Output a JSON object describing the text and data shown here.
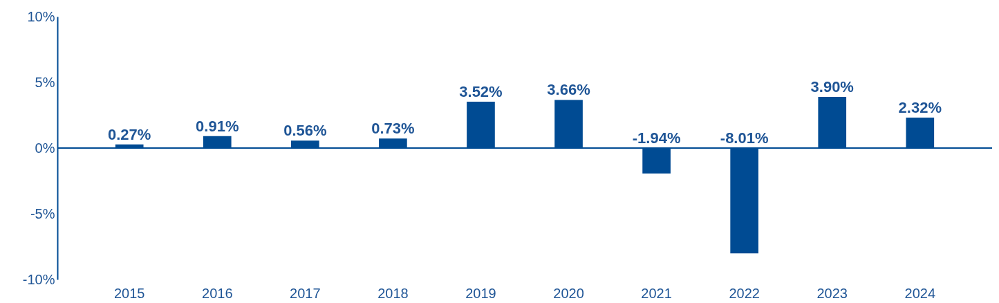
{
  "chart_data": {
    "type": "bar",
    "categories": [
      "2015",
      "2016",
      "2017",
      "2018",
      "2019",
      "2020",
      "2021",
      "2022",
      "2023",
      "2024"
    ],
    "values": [
      0.27,
      0.91,
      0.56,
      0.73,
      3.52,
      3.66,
      -1.94,
      -8.01,
      3.9,
      2.32
    ],
    "value_labels": [
      "0.27%",
      "0.91%",
      "0.56%",
      "0.73%",
      "3.52%",
      "3.66%",
      "-1.94%",
      "-8.01%",
      "3.90%",
      "2.32%"
    ],
    "color": "#004b93",
    "ylim": [
      -10,
      10
    ],
    "yticks": [
      {
        "value": -10,
        "label": "-10%"
      },
      {
        "value": -5,
        "label": "-5%"
      },
      {
        "value": 0,
        "label": "0%"
      },
      {
        "value": 5,
        "label": "5%"
      },
      {
        "value": 10,
        "label": "10%"
      }
    ],
    "ref_lines": [
      {
        "axis": "y",
        "value": 0,
        "color": "#004b93"
      }
    ],
    "grid": false
  }
}
